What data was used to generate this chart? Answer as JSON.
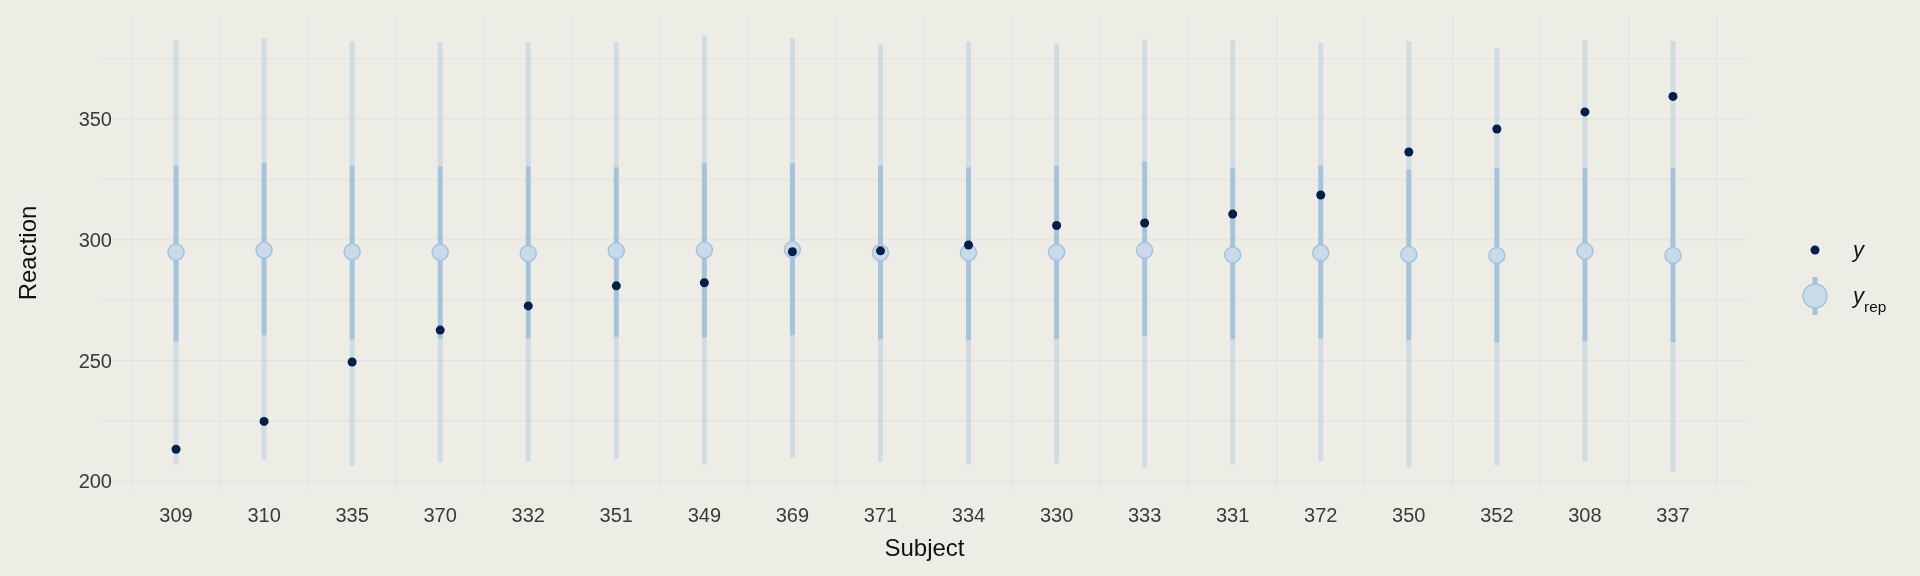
{
  "chart_data": {
    "type": "box",
    "xlabel": "Subject",
    "ylabel": "Reaction",
    "categories": [
      "309",
      "310",
      "335",
      "370",
      "332",
      "351",
      "349",
      "369",
      "371",
      "334",
      "330",
      "333",
      "331",
      "372",
      "350",
      "352",
      "308",
      "337"
    ],
    "ylim": [
      196,
      393
    ],
    "yticks": [
      200,
      250,
      300,
      350
    ],
    "grid": true,
    "legend": "right",
    "marker": "circle",
    "series": [
      {
        "name": "y",
        "type": "scatter",
        "color": "#011f4b",
        "values": [
          213.3,
          224.8,
          249.4,
          262.6,
          272.6,
          280.9,
          282.2,
          295,
          295.4,
          297.8,
          305.9,
          306.9,
          310.6,
          318.5,
          336.3,
          345.8,
          352.9,
          359.3
        ]
      },
      {
        "name": "y$_{rep}$",
        "color": "#a5c3dc",
        "boxes": [
          {
            "low": 206.9,
            "q1": 257.8,
            "median": 294.8,
            "q3": 330.6,
            "high": 382.6
          },
          {
            "low": 209.1,
            "q1": 260.4,
            "median": 295.7,
            "q3": 331.7,
            "high": 383.3
          },
          {
            "low": 206.3,
            "q1": 258.7,
            "median": 295,
            "q3": 330.6,
            "high": 382.2
          },
          {
            "low": 207.8,
            "q1": 259,
            "median": 294.8,
            "q3": 330.4,
            "high": 381.7
          },
          {
            "low": 208.3,
            "q1": 259.1,
            "median": 294.3,
            "q3": 330.4,
            "high": 381.7
          },
          {
            "low": 209.3,
            "q1": 259.8,
            "median": 295.4,
            "q3": 330,
            "high": 381.9
          },
          {
            "low": 207,
            "q1": 259.4,
            "median": 295.7,
            "q3": 331.7,
            "high": 384.6
          },
          {
            "low": 209.8,
            "q1": 260.4,
            "median": 295.9,
            "q3": 331.7,
            "high": 383.5
          },
          {
            "low": 208.1,
            "q1": 258.7,
            "median": 294.6,
            "q3": 330.7,
            "high": 380.9
          },
          {
            "low": 207,
            "q1": 258.3,
            "median": 294.6,
            "q3": 330,
            "high": 382
          },
          {
            "low": 207.4,
            "q1": 258.9,
            "median": 294.8,
            "q3": 330.6,
            "high": 381.1
          },
          {
            "low": 205.7,
            "q1": 260.2,
            "median": 295.6,
            "q3": 332.4,
            "high": 382.8
          },
          {
            "low": 207,
            "q1": 258.7,
            "median": 293.7,
            "q3": 329.8,
            "high": 382.4
          },
          {
            "low": 208.3,
            "q1": 259.1,
            "median": 294.6,
            "q3": 330.7,
            "high": 381.5
          },
          {
            "low": 205.8,
            "q1": 258.3,
            "median": 293.9,
            "q3": 329.1,
            "high": 382.2
          },
          {
            "low": 206.6,
            "q1": 257.5,
            "median": 293.5,
            "q3": 329.9,
            "high": 379.4
          },
          {
            "low": 208.1,
            "q1": 257.9,
            "median": 295.3,
            "q3": 329.9,
            "high": 382.7
          },
          {
            "low": 204,
            "q1": 257.5,
            "median": 293.5,
            "q3": 329.9,
            "high": 382.2
          }
        ]
      }
    ]
  }
}
